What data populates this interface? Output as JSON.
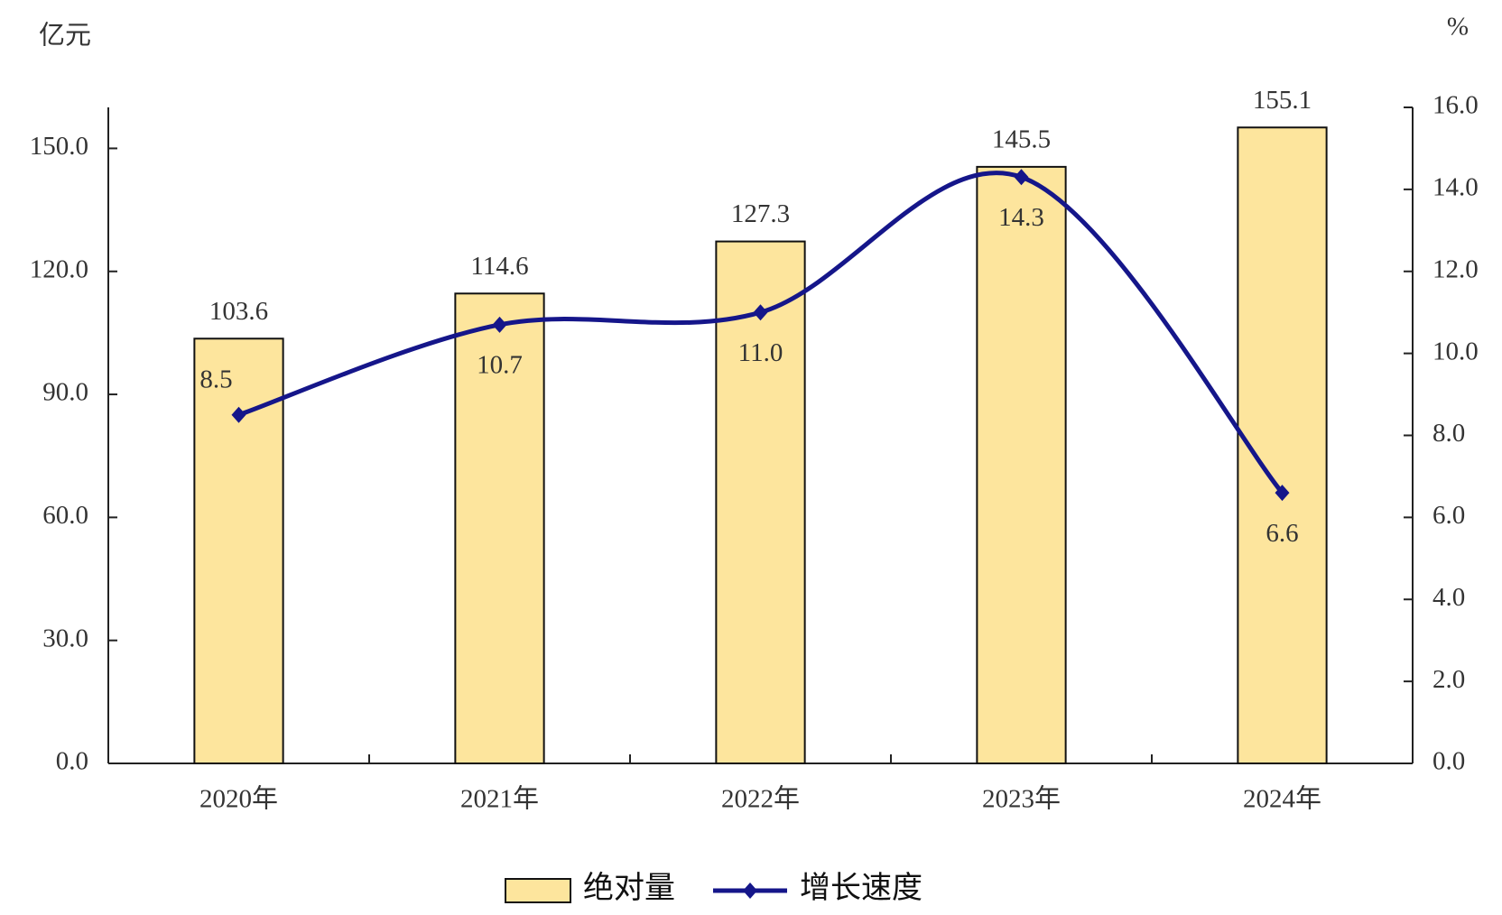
{
  "chart_data": {
    "type": "combo",
    "y_unit": "亿元",
    "y2_unit": "%",
    "categories": [
      "2020年",
      "2021年",
      "2022年",
      "2023年",
      "2024年"
    ],
    "series": [
      {
        "name": "绝对量",
        "type": "bar",
        "color": "#fde59d",
        "values": [
          103.6,
          114.6,
          127.3,
          145.5,
          155.1
        ]
      },
      {
        "name": "增长速度",
        "type": "line",
        "axis": "y2",
        "color": "#15168a",
        "values": [
          8.5,
          10.7,
          11.0,
          14.3,
          6.6
        ],
        "value_labels": [
          "8.5",
          "10.7",
          "11.0",
          "14.3",
          "6.6"
        ]
      }
    ],
    "ylim": [
      0,
      160
    ],
    "yticks": [
      {
        "value": 0,
        "label": "0.0"
      },
      {
        "value": 30,
        "label": "30.0"
      },
      {
        "value": 60,
        "label": "60.0"
      },
      {
        "value": 90,
        "label": "90.0"
      },
      {
        "value": 120,
        "label": "120.0"
      },
      {
        "value": 150,
        "label": "150.0"
      }
    ],
    "y2lim": [
      0,
      16
    ],
    "y2ticks": [
      {
        "value": 0,
        "label": "0.0"
      },
      {
        "value": 2,
        "label": "2.0"
      },
      {
        "value": 4,
        "label": "4.0"
      },
      {
        "value": 6,
        "label": "6.0"
      },
      {
        "value": 8,
        "label": "8.0"
      },
      {
        "value": 10,
        "label": "10.0"
      },
      {
        "value": 12,
        "label": "12.0"
      },
      {
        "value": 14,
        "label": "14.0"
      },
      {
        "value": 16,
        "label": "16.0"
      }
    ],
    "legend": "bottom"
  }
}
